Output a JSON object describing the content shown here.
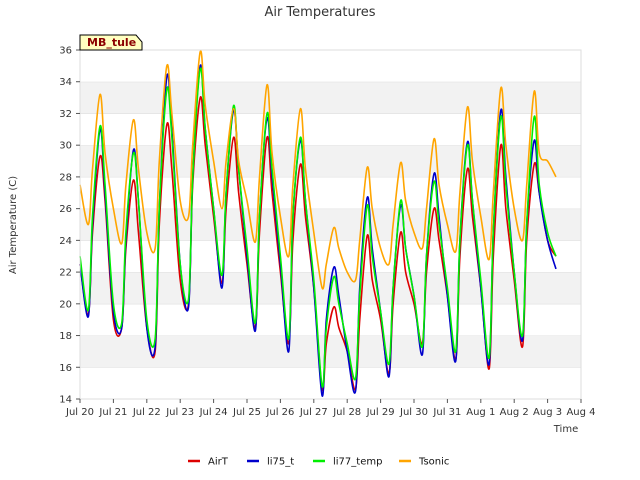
{
  "chart_data": {
    "type": "line",
    "title": "Air Temperatures",
    "xlabel": "Time",
    "ylabel": "Air Temperature (C)",
    "site_label": "MB_tule",
    "ylim": [
      14,
      36
    ],
    "y_ticks": [
      14,
      16,
      18,
      20,
      22,
      24,
      26,
      28,
      30,
      32,
      34,
      36
    ],
    "x_tick_labels": [
      "Jul 20",
      "Jul 21",
      "Jul 22",
      "Jul 23",
      "Jul 24",
      "Jul 25",
      "Jul 26",
      "Jul 27",
      "Jul 28",
      "Jul 29",
      "Jul 30",
      "Jul 31",
      "Aug 1",
      "Aug 2",
      "Aug 3",
      "Aug 4"
    ],
    "grid": "horizontal bands",
    "legend_position": "bottom",
    "day_offsets": [
      0,
      0.25,
      0.375,
      0.6,
      0.75,
      1.0
    ],
    "series": [
      {
        "name": "AirT",
        "color": "#dd0000",
        "values": [
          [
            22.5,
            19.3,
            24.5,
            29.3,
            26.5
          ],
          [
            19.0,
            18.5,
            23.5,
            27.8,
            24.5
          ],
          [
            18.5,
            17.0,
            25.0,
            31.3,
            28.5
          ],
          [
            21.5,
            20.0,
            27.5,
            33.0,
            30.0
          ],
          [
            25.5,
            21.3,
            26.0,
            30.5,
            27.0
          ],
          [
            22.5,
            18.5,
            24.5,
            30.5,
            27.0
          ],
          [
            22.0,
            17.5,
            24.0,
            28.8,
            25.5
          ],
          [
            21.0,
            14.6,
            17.5,
            19.8,
            18.5
          ],
          [
            17.0,
            14.6,
            19.0,
            24.3,
            21.5
          ],
          [
            19.0,
            15.6,
            20.0,
            24.5,
            22.0
          ],
          [
            20.0,
            17.5,
            22.0,
            26.0,
            24.0
          ],
          [
            20.5,
            16.5,
            23.0,
            28.5,
            25.5
          ],
          [
            21.0,
            15.9,
            23.0,
            30.0,
            26.0
          ],
          [
            21.5,
            17.3,
            24.0,
            28.8,
            27.0
          ],
          [
            24.0,
            23.0
          ]
        ]
      },
      {
        "name": "li75_t",
        "color": "#0000cc",
        "values": [
          [
            22.5,
            19.2,
            25.0,
            31.0,
            27.0
          ],
          [
            19.5,
            18.5,
            24.0,
            29.7,
            26.5
          ],
          [
            18.5,
            17.3,
            26.0,
            34.3,
            31.0
          ],
          [
            22.5,
            19.8,
            28.0,
            35.0,
            31.0
          ],
          [
            26.0,
            21.0,
            27.0,
            32.2,
            28.5
          ],
          [
            23.0,
            18.3,
            25.5,
            31.7,
            28.0
          ],
          [
            22.5,
            17.0,
            25.5,
            30.3,
            26.5
          ],
          [
            21.0,
            14.2,
            19.0,
            22.3,
            20.5
          ],
          [
            17.0,
            14.5,
            21.0,
            26.7,
            23.5
          ],
          [
            19.5,
            15.4,
            21.0,
            26.2,
            23.5
          ],
          [
            20.5,
            16.8,
            23.0,
            28.2,
            25.5
          ],
          [
            20.5,
            16.4,
            24.0,
            30.2,
            26.5
          ],
          [
            21.0,
            16.2,
            24.5,
            32.2,
            28.0
          ],
          [
            22.0,
            17.7,
            25.0,
            30.3,
            27.0
          ],
          [
            24.0,
            22.2
          ]
        ]
      },
      {
        "name": "li77_temp",
        "color": "#00ee00",
        "values": [
          [
            23.0,
            19.6,
            25.5,
            31.2,
            27.5
          ],
          [
            20.0,
            18.8,
            24.5,
            29.5,
            26.5
          ],
          [
            19.0,
            17.8,
            26.0,
            33.5,
            30.5
          ],
          [
            22.5,
            20.3,
            28.0,
            34.8,
            31.0
          ],
          [
            26.0,
            21.8,
            27.0,
            32.5,
            28.5
          ],
          [
            23.5,
            18.8,
            25.5,
            32.0,
            28.5
          ],
          [
            23.0,
            17.8,
            25.5,
            30.5,
            26.5
          ],
          [
            21.5,
            14.8,
            18.5,
            21.7,
            20.0
          ],
          [
            17.5,
            15.3,
            20.5,
            26.2,
            23.0
          ],
          [
            19.5,
            16.2,
            21.0,
            26.5,
            23.5
          ],
          [
            20.5,
            17.3,
            23.0,
            27.7,
            25.0
          ],
          [
            21.0,
            17.0,
            24.0,
            30.0,
            26.5
          ],
          [
            21.5,
            16.6,
            24.5,
            31.8,
            27.5
          ],
          [
            22.0,
            18.0,
            25.0,
            31.8,
            27.5
          ],
          [
            24.5,
            23.0
          ]
        ]
      },
      {
        "name": "Tsonic",
        "color": "#ffa500",
        "values": [
          [
            27.5,
            25.0,
            28.5,
            33.2,
            29.5
          ],
          [
            26.0,
            23.8,
            27.5,
            31.6,
            28.5
          ],
          [
            24.5,
            23.5,
            29.0,
            35.0,
            32.0
          ],
          [
            26.5,
            25.5,
            30.0,
            35.9,
            32.5
          ],
          [
            29.0,
            26.0,
            29.0,
            32.3,
            29.0
          ],
          [
            26.5,
            23.9,
            28.0,
            33.8,
            29.5
          ],
          [
            25.5,
            23.0,
            27.5,
            32.3,
            28.5
          ],
          [
            24.5,
            21.0,
            22.5,
            24.8,
            23.5
          ],
          [
            22.0,
            21.5,
            24.0,
            28.6,
            26.0
          ],
          [
            23.5,
            22.5,
            25.0,
            28.9,
            26.5
          ],
          [
            24.5,
            23.5,
            26.0,
            30.4,
            27.5
          ],
          [
            25.0,
            23.3,
            27.0,
            32.4,
            29.0
          ],
          [
            25.5,
            22.8,
            27.0,
            33.6,
            30.0
          ],
          [
            26.0,
            24.0,
            27.5,
            33.4,
            29.5
          ],
          [
            29.0,
            28.0
          ]
        ]
      }
    ]
  }
}
